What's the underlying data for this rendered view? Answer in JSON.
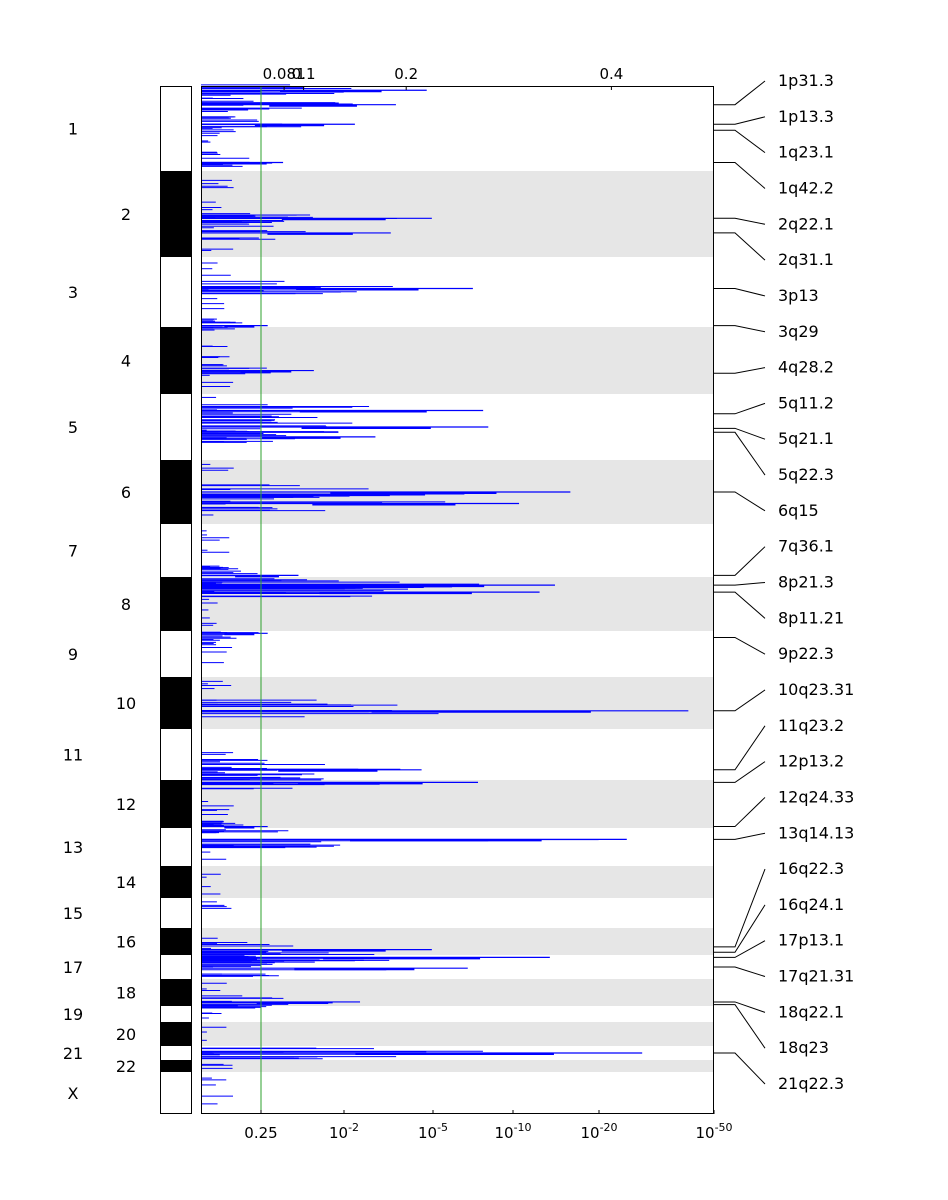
{
  "chart_data": {
    "type": "genomic-peaks",
    "title": "",
    "chromosomes": [
      "1",
      "2",
      "3",
      "4",
      "5",
      "6",
      "7",
      "8",
      "9",
      "10",
      "11",
      "12",
      "13",
      "14",
      "15",
      "16",
      "17",
      "18",
      "19",
      "20",
      "21",
      "22",
      "X"
    ],
    "top_axis": {
      "ticks": [
        {
          "label": "0.081",
          "value": 0.081
        },
        {
          "label": "0.1",
          "value": 0.1
        },
        {
          "label": "0.2",
          "value": 0.2
        },
        {
          "label": "0.4",
          "value": 0.4
        }
      ]
    },
    "bottom_axis": {
      "ticks": [
        {
          "label": "0.25",
          "base": "",
          "exp": "",
          "value": 0.25
        },
        {
          "label": "10-2",
          "base": "10",
          "exp": "-2",
          "value": 0.01
        },
        {
          "label": "10-5",
          "base": "10",
          "exp": "-5",
          "value": 1e-05
        },
        {
          "label": "10-10",
          "base": "10",
          "exp": "-10",
          "value": 1e-10
        },
        {
          "label": "10-20",
          "base": "10",
          "exp": "-20",
          "value": 1e-20
        },
        {
          "label": "10-50",
          "base": "10",
          "exp": "-50",
          "value": 1e-50
        }
      ]
    },
    "threshold": {
      "q_value": 0.25,
      "color": "#2ca02c"
    },
    "series_color": "#0000ff",
    "peaks": [
      {
        "chrom": "1",
        "pos": 0.05,
        "score": 0.44
      },
      {
        "chrom": "1",
        "pos": 0.22,
        "score": 0.38
      },
      {
        "chrom": "1",
        "pos": 0.45,
        "score": 0.3
      },
      {
        "chrom": "1",
        "pos": 0.9,
        "score": 0.16
      },
      {
        "chrom": "2",
        "pos": 0.55,
        "score": 0.45
      },
      {
        "chrom": "2",
        "pos": 0.72,
        "score": 0.37
      },
      {
        "chrom": "3",
        "pos": 0.45,
        "score": 0.53
      },
      {
        "chrom": "3",
        "pos": 0.98,
        "score": 0.13
      },
      {
        "chrom": "4",
        "pos": 0.65,
        "score": 0.22
      },
      {
        "chrom": "5",
        "pos": 0.25,
        "score": 0.55
      },
      {
        "chrom": "5",
        "pos": 0.5,
        "score": 0.56
      },
      {
        "chrom": "5",
        "pos": 0.65,
        "score": 0.34
      },
      {
        "chrom": "6",
        "pos": 0.5,
        "score": 0.72
      },
      {
        "chrom": "6",
        "pos": 0.68,
        "score": 0.62
      },
      {
        "chrom": "7",
        "pos": 0.97,
        "score": 0.19
      },
      {
        "chrom": "8",
        "pos": 0.15,
        "score": 0.69
      },
      {
        "chrom": "8",
        "pos": 0.28,
        "score": 0.66
      },
      {
        "chrom": "9",
        "pos": 0.05,
        "score": 0.13
      },
      {
        "chrom": "10",
        "pos": 0.65,
        "score": 0.95
      },
      {
        "chrom": "11",
        "pos": 0.8,
        "score": 0.43
      },
      {
        "chrom": "12",
        "pos": 0.05,
        "score": 0.54
      },
      {
        "chrom": "12",
        "pos": 0.97,
        "score": 0.13
      },
      {
        "chrom": "13",
        "pos": 0.3,
        "score": 0.83
      },
      {
        "chrom": "16",
        "pos": 0.8,
        "score": 0.45
      },
      {
        "chrom": "17",
        "pos": 0.1,
        "score": 0.68
      },
      {
        "chrom": "17",
        "pos": 0.55,
        "score": 0.52
      },
      {
        "chrom": "18",
        "pos": 0.85,
        "score": 0.31
      },
      {
        "chrom": "21",
        "pos": 0.5,
        "score": 0.86
      }
    ],
    "cytobands": [
      {
        "label": "1p31.3",
        "chrom": "1",
        "pos": 0.22
      },
      {
        "label": "1p13.3",
        "chrom": "1",
        "pos": 0.45
      },
      {
        "label": "1q23.1",
        "chrom": "1",
        "pos": 0.52
      },
      {
        "label": "1q42.2",
        "chrom": "1",
        "pos": 0.9
      },
      {
        "label": "2q22.1",
        "chrom": "2",
        "pos": 0.55
      },
      {
        "label": "2q31.1",
        "chrom": "2",
        "pos": 0.72
      },
      {
        "label": "3p13",
        "chrom": "3",
        "pos": 0.45
      },
      {
        "label": "3q29",
        "chrom": "3",
        "pos": 0.98
      },
      {
        "label": "4q28.2",
        "chrom": "4",
        "pos": 0.69
      },
      {
        "label": "5q11.2",
        "chrom": "5",
        "pos": 0.3
      },
      {
        "label": "5q21.1",
        "chrom": "5",
        "pos": 0.52
      },
      {
        "label": "5q22.3",
        "chrom": "5",
        "pos": 0.58
      },
      {
        "label": "6q15",
        "chrom": "6",
        "pos": 0.5
      },
      {
        "label": "7q36.1",
        "chrom": "7",
        "pos": 0.97
      },
      {
        "label": "8p21.3",
        "chrom": "8",
        "pos": 0.15
      },
      {
        "label": "8p11.21",
        "chrom": "8",
        "pos": 0.28
      },
      {
        "label": "9p22.3",
        "chrom": "9",
        "pos": 0.14
      },
      {
        "label": "10q23.31",
        "chrom": "10",
        "pos": 0.65
      },
      {
        "label": "11q23.2",
        "chrom": "11",
        "pos": 0.8
      },
      {
        "label": "12p13.2",
        "chrom": "12",
        "pos": 0.05
      },
      {
        "label": "12q24.33",
        "chrom": "12",
        "pos": 0.97
      },
      {
        "label": "13q14.13",
        "chrom": "13",
        "pos": 0.3
      },
      {
        "label": "16q22.3",
        "chrom": "16",
        "pos": 0.7
      },
      {
        "label": "16q24.1",
        "chrom": "16",
        "pos": 0.9
      },
      {
        "label": "17p13.1",
        "chrom": "17",
        "pos": 0.1
      },
      {
        "label": "17q21.31",
        "chrom": "17",
        "pos": 0.5
      },
      {
        "label": "18q22.1",
        "chrom": "18",
        "pos": 0.85
      },
      {
        "label": "18q23",
        "chrom": "18",
        "pos": 0.95
      },
      {
        "label": "21q22.3",
        "chrom": "21",
        "pos": 0.5
      }
    ]
  }
}
